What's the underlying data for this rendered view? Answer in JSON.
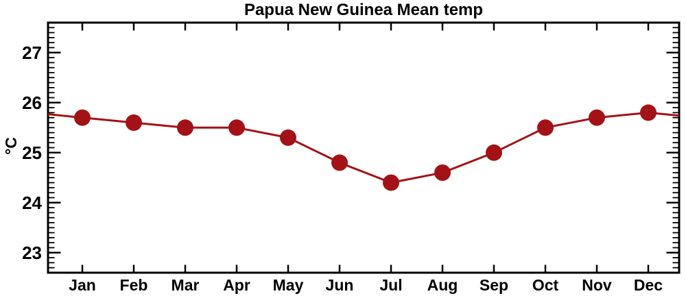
{
  "title": "Papua New Guinea Mean temp",
  "colors": {
    "series": "#A31216",
    "axis": "#000000",
    "background": "#FFFFFF"
  },
  "chart_data": {
    "type": "line",
    "title": "Papua New Guinea Mean temp",
    "xlabel": "",
    "ylabel": "°C",
    "categories": [
      "Jan",
      "Feb",
      "Mar",
      "Apr",
      "May",
      "Jun",
      "Jul",
      "Aug",
      "Sep",
      "Oct",
      "Nov",
      "Dec"
    ],
    "values": [
      25.7,
      25.6,
      25.5,
      25.5,
      25.3,
      24.8,
      24.4,
      24.6,
      25.0,
      25.5,
      25.7,
      25.8
    ],
    "series_color": "#A31216",
    "marker": "filled-circle",
    "line_only_no_grid": true,
    "grid": false,
    "legend": "none",
    "xlim": [
      0.3333,
      12.6
    ],
    "ylim": [
      22.6,
      27.6
    ],
    "ytick_major": [
      23,
      24,
      25,
      26,
      27
    ],
    "ytick_minor_step": 0.1,
    "xticks_at_each_month": true,
    "curve_edge_extension": {
      "left_value": 25.77,
      "right_value": 25.74
    }
  }
}
